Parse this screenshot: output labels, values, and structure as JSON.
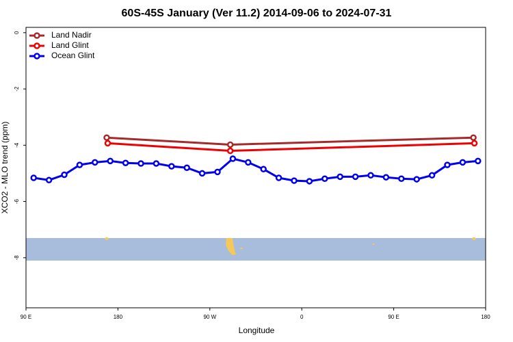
{
  "chart_data": {
    "type": "line",
    "title": "60S-45S January (Ver 11.2)   2014-09-06 to 2024-07-31",
    "x_label": "Longitude",
    "y_label": "XCO2 - MLO trend (ppm)",
    "xlim": [
      90,
      540
    ],
    "ylim": [
      -9.78,
      0.19
    ],
    "xticks": [
      {
        "value": 90,
        "label": "90 E"
      },
      {
        "value": 180,
        "label": "180"
      },
      {
        "value": 270,
        "label": "90 W"
      },
      {
        "value": 360,
        "label": "0"
      },
      {
        "value": 450,
        "label": "90 E"
      },
      {
        "value": 540,
        "label": "180"
      }
    ],
    "yticks": [
      0,
      -2,
      -4,
      -6,
      -8
    ],
    "legend": "top-left",
    "series": [
      {
        "name": "Land Nadir",
        "color": "#a52a2a",
        "x": [
          169,
          290,
          528
        ],
        "values": [
          -3.73,
          -3.98,
          -3.73
        ]
      },
      {
        "name": "Land Glint",
        "color": "#ee0000",
        "x": [
          170,
          290,
          529
        ],
        "values": [
          -3.93,
          -4.2,
          -3.93
        ]
      },
      {
        "name": "Ocean Glint",
        "color": "#0000ee",
        "x": [
          97.5,
          112.5,
          127.5,
          142.5,
          157.5,
          172.5,
          187.5,
          202.5,
          217.5,
          232.5,
          247.5,
          262.5,
          277.5,
          292.5,
          307.5,
          322.5,
          337.5,
          352.5,
          367.5,
          382.5,
          397.5,
          412.5,
          427.5,
          442.5,
          457.5,
          472.5,
          487.5,
          502.5,
          517.5,
          532.5
        ],
        "values": [
          -5.16,
          -5.24,
          -5.05,
          -4.7,
          -4.61,
          -4.56,
          -4.63,
          -4.65,
          -4.65,
          -4.75,
          -4.8,
          -5.0,
          -4.95,
          -4.48,
          -4.61,
          -4.85,
          -5.16,
          -5.26,
          -5.28,
          -5.19,
          -5.12,
          -5.12,
          -5.07,
          -5.14,
          -5.19,
          -5.21,
          -5.07,
          -4.7,
          -4.61,
          -4.56
        ]
      }
    ]
  }
}
